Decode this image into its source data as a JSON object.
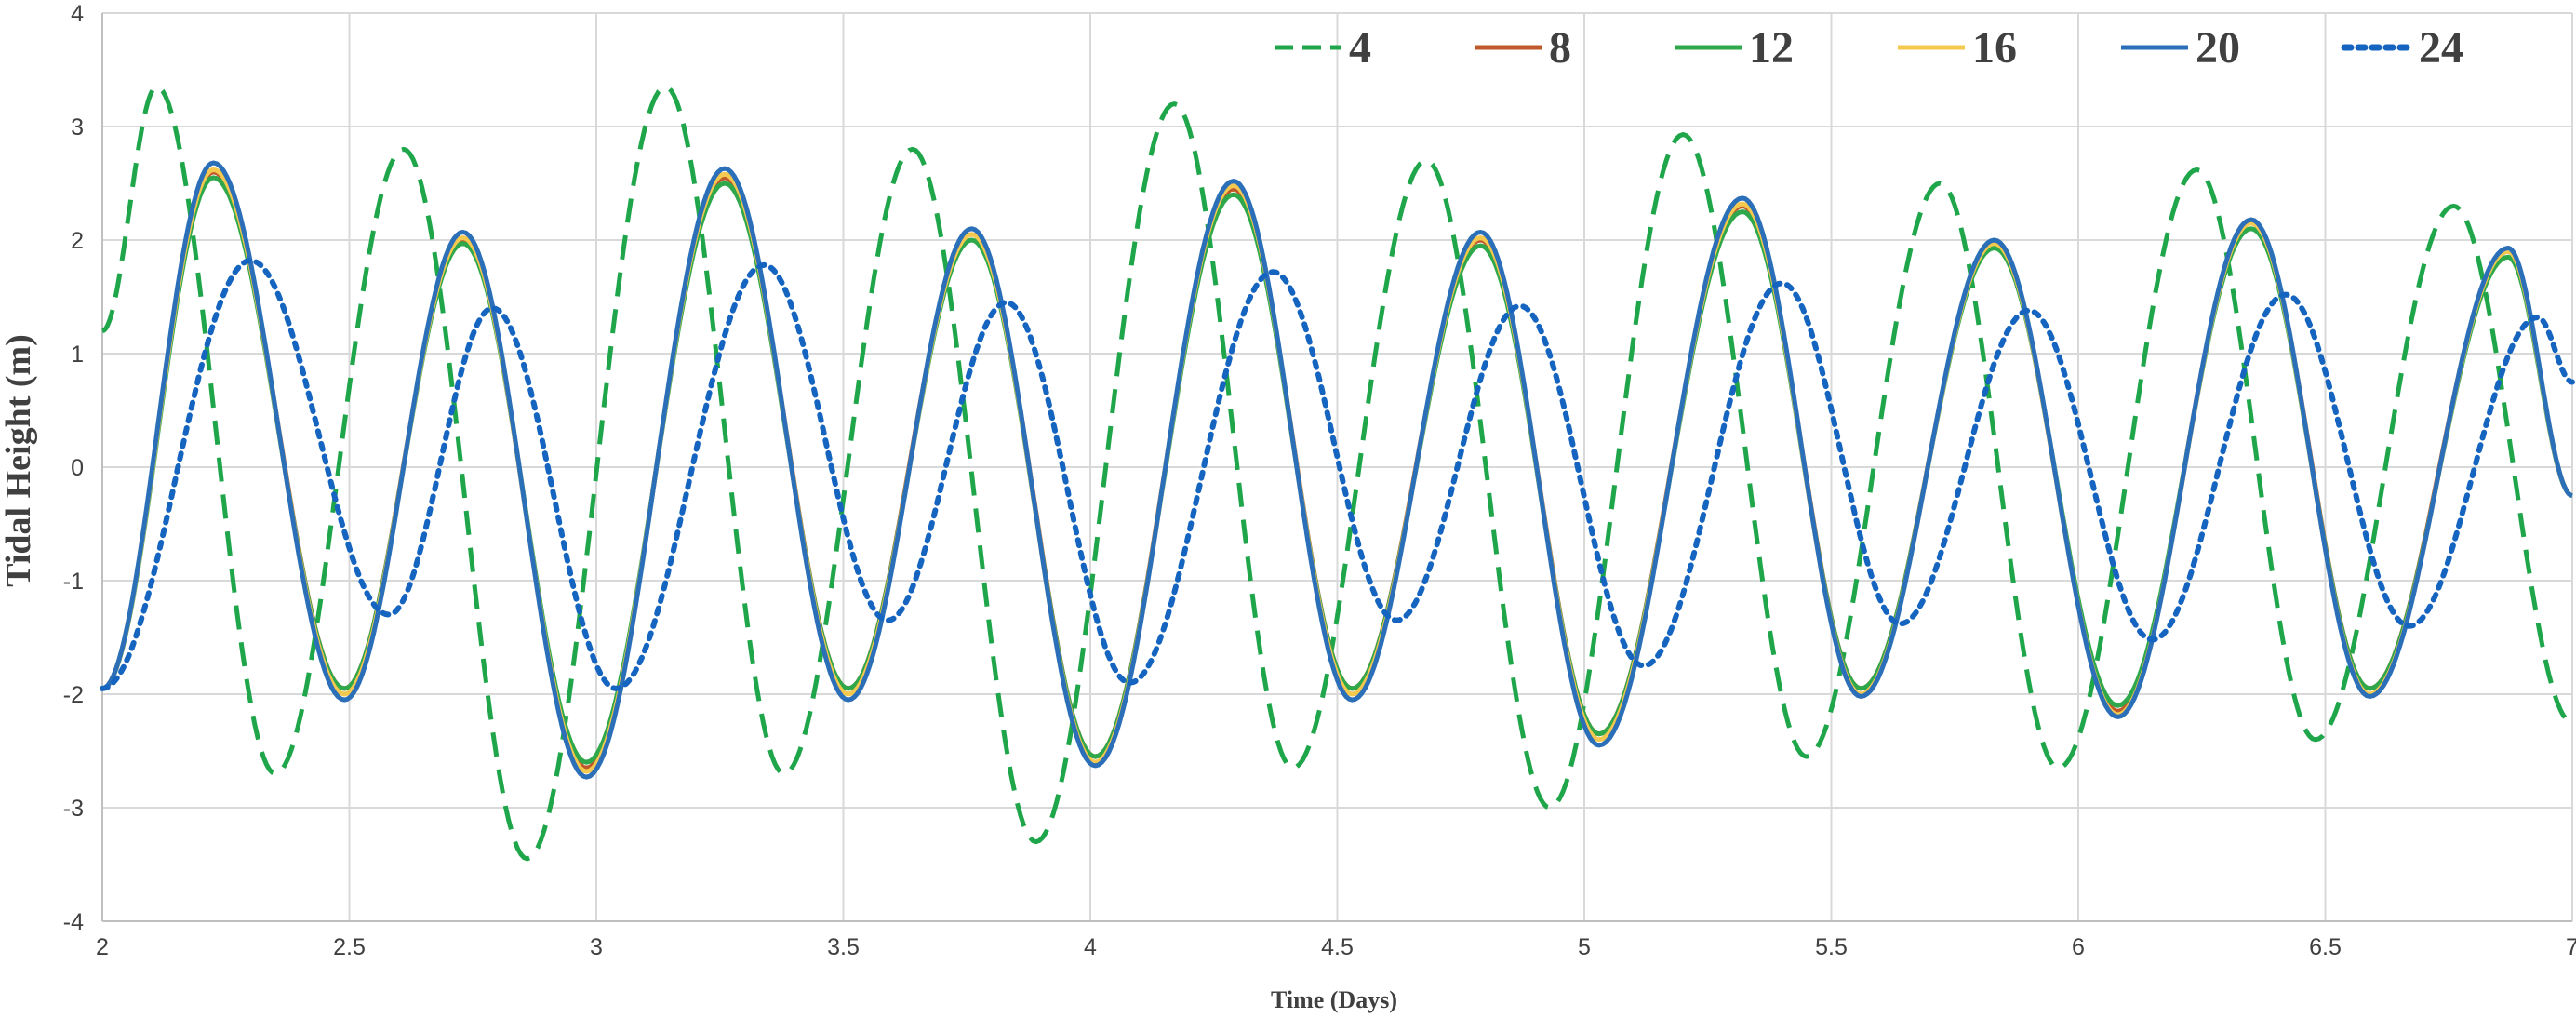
{
  "chart_data": {
    "type": "line",
    "title": "",
    "xlabel": "Time (Days)",
    "ylabel": "Tidal Height (m)",
    "xlim": [
      2,
      7
    ],
    "ylim": [
      -4,
      4
    ],
    "x_ticks": [
      2,
      2.5,
      3,
      3.5,
      4,
      4.5,
      5,
      5.5,
      6,
      6.5,
      7
    ],
    "y_ticks": [
      -4,
      -3,
      -2,
      -1,
      0,
      1,
      2,
      3,
      4
    ],
    "grid": true,
    "legend_position": "top-right",
    "series": [
      {
        "name": "4",
        "color": "#1fa64a",
        "dash": "dashed",
        "x": [
          2.0,
          2.11,
          2.35,
          2.61,
          2.86,
          3.14,
          3.38,
          3.64,
          3.89,
          4.17,
          4.41,
          4.68,
          4.93,
          5.2,
          5.45,
          5.72,
          5.96,
          6.24,
          6.48,
          6.76,
          7.0
        ],
        "y": [
          1.2,
          3.35,
          -2.7,
          2.8,
          -3.45,
          3.35,
          -2.7,
          2.8,
          -3.3,
          3.2,
          -2.65,
          2.7,
          -3.0,
          2.93,
          -2.55,
          2.5,
          -2.65,
          2.62,
          -2.4,
          2.3,
          -2.25
        ]
      },
      {
        "name": "8",
        "color": "#c0592a",
        "dash": "solid",
        "x": [
          2.0,
          2.225,
          2.49,
          2.73,
          2.98,
          3.26,
          3.51,
          3.76,
          4.01,
          4.29,
          4.53,
          4.79,
          5.03,
          5.32,
          5.56,
          5.83,
          6.08,
          6.35,
          6.59,
          6.87,
          7.0
        ],
        "y": [
          -1.95,
          2.6,
          -1.95,
          2.0,
          -2.65,
          2.55,
          -1.95,
          2.05,
          -2.55,
          2.45,
          -1.95,
          2.0,
          -2.35,
          2.3,
          -1.95,
          1.95,
          -2.15,
          2.15,
          -1.95,
          1.9,
          -0.25
        ]
      },
      {
        "name": "12",
        "color": "#2ea84a",
        "dash": "solid",
        "x": [
          2.0,
          2.225,
          2.49,
          2.73,
          2.98,
          3.26,
          3.51,
          3.76,
          4.01,
          4.29,
          4.53,
          4.79,
          5.03,
          5.32,
          5.56,
          5.83,
          6.08,
          6.35,
          6.59,
          6.87,
          7.0
        ],
        "y": [
          -1.95,
          2.55,
          -1.95,
          1.97,
          -2.6,
          2.5,
          -1.95,
          2.0,
          -2.55,
          2.4,
          -1.95,
          1.95,
          -2.35,
          2.25,
          -1.95,
          1.93,
          -2.1,
          2.1,
          -1.95,
          1.85,
          -0.25
        ]
      },
      {
        "name": "16",
        "color": "#f5c84f",
        "dash": "solid",
        "x": [
          2.0,
          2.225,
          2.49,
          2.73,
          2.98,
          3.26,
          3.51,
          3.76,
          4.01,
          4.29,
          4.53,
          4.79,
          5.03,
          5.32,
          5.56,
          5.83,
          6.08,
          6.35,
          6.59,
          6.87,
          7.0
        ],
        "y": [
          -1.95,
          2.62,
          -2.0,
          2.02,
          -2.68,
          2.58,
          -2.0,
          2.05,
          -2.6,
          2.48,
          -2.0,
          2.02,
          -2.4,
          2.32,
          -2.0,
          1.97,
          -2.18,
          2.15,
          -2.0,
          1.9,
          -0.25
        ]
      },
      {
        "name": "20",
        "color": "#2c6fb9",
        "dash": "solid",
        "x": [
          2.0,
          2.225,
          2.49,
          2.73,
          2.98,
          3.26,
          3.51,
          3.76,
          4.01,
          4.29,
          4.53,
          4.79,
          5.03,
          5.32,
          5.56,
          5.83,
          6.08,
          6.35,
          6.59,
          6.87,
          7.0
        ],
        "y": [
          -1.95,
          2.68,
          -2.05,
          2.07,
          -2.73,
          2.63,
          -2.05,
          2.1,
          -2.63,
          2.52,
          -2.05,
          2.07,
          -2.45,
          2.37,
          -2.02,
          2.0,
          -2.2,
          2.18,
          -2.02,
          1.93,
          -0.25
        ]
      },
      {
        "name": "24",
        "color": "#1565c0",
        "dash": "dotted",
        "x": [
          2.0,
          2.3,
          2.58,
          2.79,
          3.04,
          3.34,
          3.59,
          3.83,
          4.08,
          4.37,
          4.62,
          4.87,
          5.12,
          5.4,
          5.64,
          5.9,
          6.15,
          6.42,
          6.67,
          6.93,
          7.0
        ],
        "y": [
          -1.95,
          1.82,
          -1.3,
          1.4,
          -1.95,
          1.78,
          -1.35,
          1.45,
          -1.9,
          1.72,
          -1.35,
          1.42,
          -1.75,
          1.62,
          -1.38,
          1.38,
          -1.52,
          1.52,
          -1.4,
          1.32,
          0.75
        ]
      }
    ]
  }
}
